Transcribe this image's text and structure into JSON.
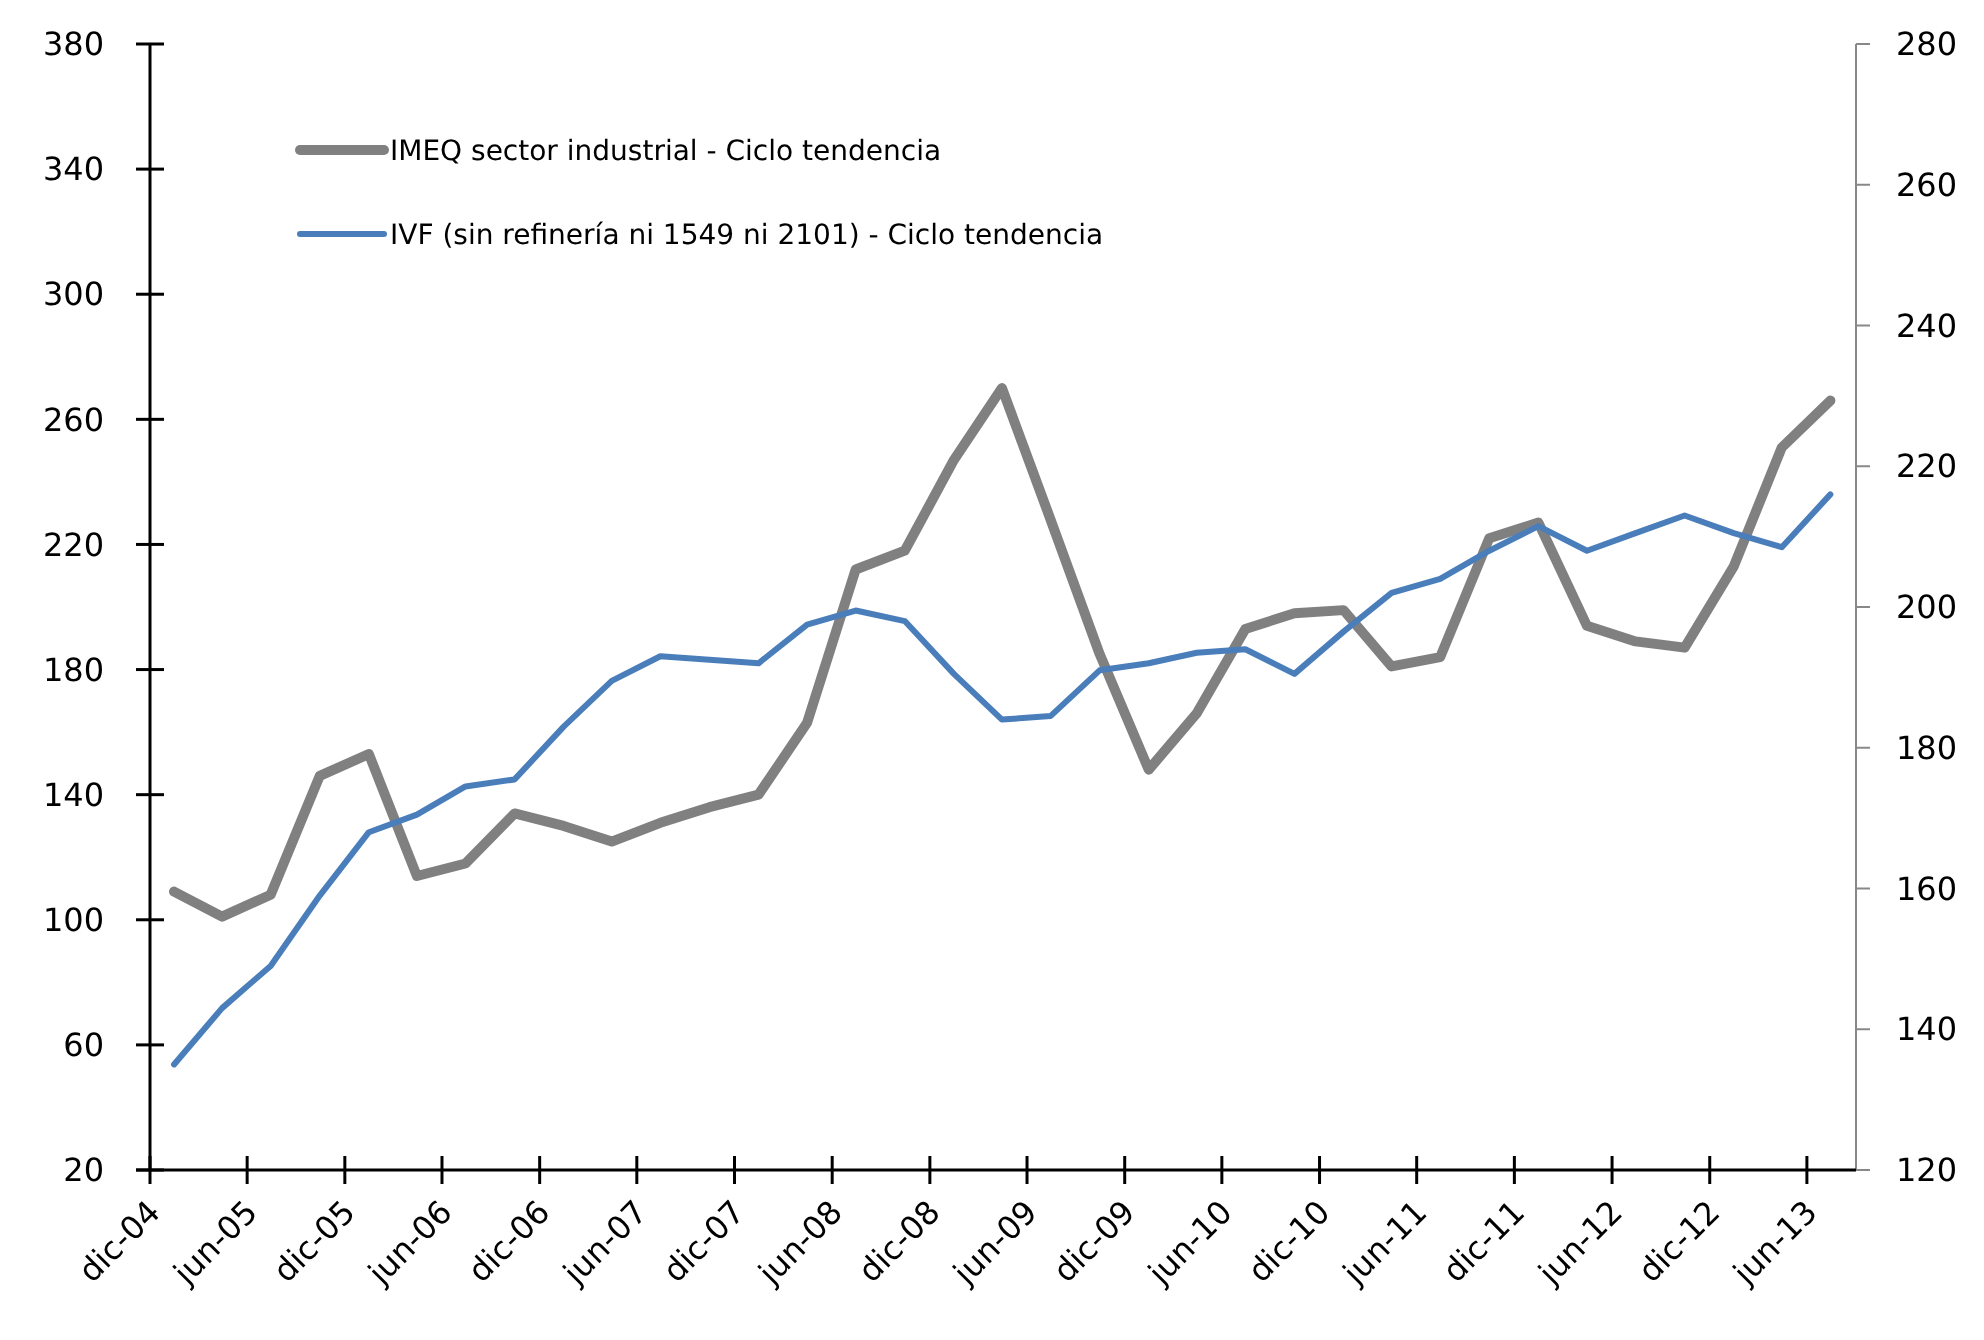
{
  "chart_data": {
    "type": "line",
    "legend": "top left",
    "marker": "none",
    "line_style": "solid",
    "grid": false,
    "x": [
      "2005-01-15",
      "2005-04-15",
      "2005-07-15",
      "2005-10-15",
      "2006-01-15",
      "2006-04-15",
      "2006-07-15",
      "2006-10-15",
      "2007-01-15",
      "2007-04-15",
      "2007-07-15",
      "2007-10-15",
      "2008-01-15",
      "2008-04-15",
      "2008-07-15",
      "2008-10-15",
      "2009-01-15",
      "2009-04-15",
      "2009-07-15",
      "2009-10-15",
      "2010-01-15",
      "2010-04-15",
      "2010-07-15",
      "2010-10-15",
      "2011-01-15",
      "2011-04-15",
      "2011-07-15",
      "2011-10-15",
      "2012-01-15",
      "2012-04-15",
      "2012-07-15",
      "2012-10-15",
      "2013-01-15",
      "2013-04-15",
      "2013-07-15"
    ],
    "xlim": [
      "2004-12-01",
      "2013-09-01"
    ],
    "xticks": [
      {
        "value": "2004-12-01",
        "label": "dic-04"
      },
      {
        "value": "2005-06-01",
        "label": "jun-05"
      },
      {
        "value": "2005-12-01",
        "label": "dic-05"
      },
      {
        "value": "2006-06-01",
        "label": "jun-06"
      },
      {
        "value": "2006-12-01",
        "label": "dic-06"
      },
      {
        "value": "2007-06-01",
        "label": "jun-07"
      },
      {
        "value": "2007-12-01",
        "label": "dic-07"
      },
      {
        "value": "2008-06-01",
        "label": "jun-08"
      },
      {
        "value": "2008-12-01",
        "label": "dic-08"
      },
      {
        "value": "2009-06-01",
        "label": "jun-09"
      },
      {
        "value": "2009-12-01",
        "label": "dic-09"
      },
      {
        "value": "2010-06-01",
        "label": "jun-10"
      },
      {
        "value": "2010-12-01",
        "label": "dic-10"
      },
      {
        "value": "2011-06-01",
        "label": "jun-11"
      },
      {
        "value": "2011-12-01",
        "label": "dic-11"
      },
      {
        "value": "2012-06-01",
        "label": "jun-12"
      },
      {
        "value": "2012-12-01",
        "label": "dic-12"
      },
      {
        "value": "2013-06-01",
        "label": "jun-13"
      }
    ],
    "ylim": [
      20,
      380
    ],
    "yticks": [
      20,
      60,
      100,
      140,
      180,
      220,
      260,
      300,
      340,
      380
    ],
    "y2lim": [
      120,
      280
    ],
    "y2ticks": [
      120,
      140,
      160,
      180,
      200,
      220,
      240,
      260,
      280
    ],
    "series": [
      {
        "name": "IMEQ sector industrial - Ciclo tendencia",
        "color": "#808080",
        "values": [
          109,
          101,
          108,
          146,
          153,
          114,
          118,
          134,
          130,
          125,
          131,
          136,
          140,
          163,
          212,
          218,
          247,
          270,
          228,
          185,
          148,
          166,
          193,
          198,
          199,
          181,
          184,
          222,
          227,
          194,
          189,
          187,
          213,
          251,
          266
        ]
      },
      {
        "name": "IVF (sin refinería ni 1549 ni 2101) - Ciclo tendencia",
        "color": "#4a7ebb",
        "axis": "y2",
        "values": [
          135,
          143,
          149,
          159,
          168,
          170.5,
          174.5,
          175.5,
          183,
          189.5,
          193,
          192.5,
          192,
          197.5,
          199.5,
          198,
          190.5,
          184,
          184.5,
          191,
          192,
          193.5,
          194,
          190.5,
          196.5,
          202,
          204,
          208,
          211.5,
          208,
          210.5,
          213,
          210.5,
          208.5,
          216
        ]
      }
    ]
  }
}
